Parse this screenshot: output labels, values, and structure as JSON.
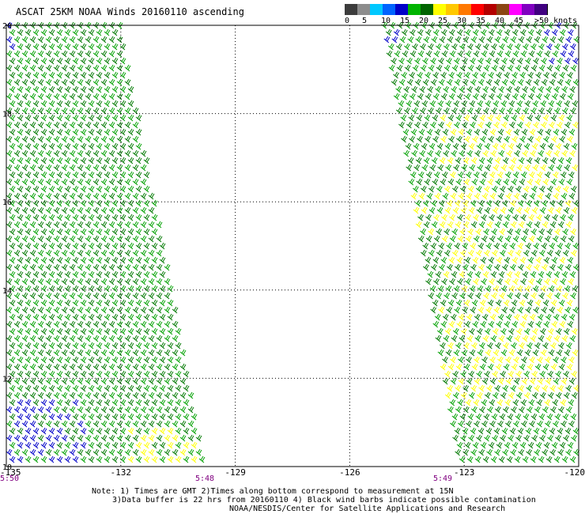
{
  "title": "ASCAT 25KM NOAA Winds 20160110 ascending",
  "legend": {
    "labels": [
      "0",
      "5",
      "10",
      "15",
      "20",
      "25",
      "30",
      "35",
      "40",
      "45",
      ">50 knots"
    ],
    "colors": [
      "#3c3c3c",
      "#8c8c8c",
      "#00c8ff",
      "#0064ff",
      "#0000c8",
      "#00b400",
      "#006400",
      "#ffff00",
      "#ffc800",
      "#ff7800",
      "#ff0000",
      "#b40000",
      "#8b4513",
      "#ff00ff",
      "#8000c0",
      "#400080"
    ]
  },
  "lon_ticks": [
    "-135",
    "-132",
    "-129",
    "-126",
    "-123",
    "-120"
  ],
  "lat_ticks": [
    "20",
    "18",
    "16",
    "14",
    "12",
    "10"
  ],
  "pass_times": [
    "5:50",
    "5:48",
    "5:49"
  ],
  "footnote": {
    "line1": "Note: 1) Times are GMT 2)Times along bottom correspond to measurement at 15N",
    "line2": "3)Data buffer is 22 hrs from 20160110 4) Black wind barbs indicate possible contamination",
    "line3": "NOAA/NESDIS/Center for Satellite Applications and Research"
  }
}
